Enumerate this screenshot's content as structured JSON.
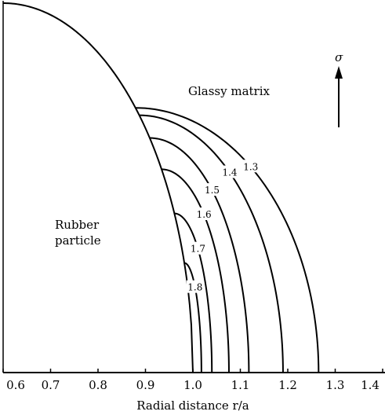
{
  "chart_data": {
    "type": "line",
    "xlabel": "Radial distance  r/a",
    "ylabel": "",
    "xlim": [
      0.6,
      1.4
    ],
    "x_ticks": [
      "0.6",
      "0.7",
      "0.8",
      "0.9",
      "1.0",
      "1.1",
      "1.2",
      "1.3",
      "1.4"
    ],
    "particle_boundary": {
      "center_x": 0.6,
      "radius": 0.4
    },
    "series": [
      {
        "label": "1.3",
        "junction_x": 0.879,
        "end_x": 1.265
      },
      {
        "label": "1.4",
        "junction_x": 0.887,
        "end_x": 1.19
      },
      {
        "label": "1.5",
        "junction_x": 0.909,
        "end_x": 1.118
      },
      {
        "label": "1.6",
        "junction_x": 0.934,
        "end_x": 1.076
      },
      {
        "label": "1.7",
        "junction_x": 0.961,
        "end_x": 1.04
      },
      {
        "label": "1.8",
        "junction_x": 0.982,
        "end_x": 1.018
      }
    ],
    "annotations": {
      "matrix": "Glassy matrix",
      "particle_line1": "Rubber",
      "particle_line2": "particle",
      "stress_symbol": "σ"
    }
  }
}
